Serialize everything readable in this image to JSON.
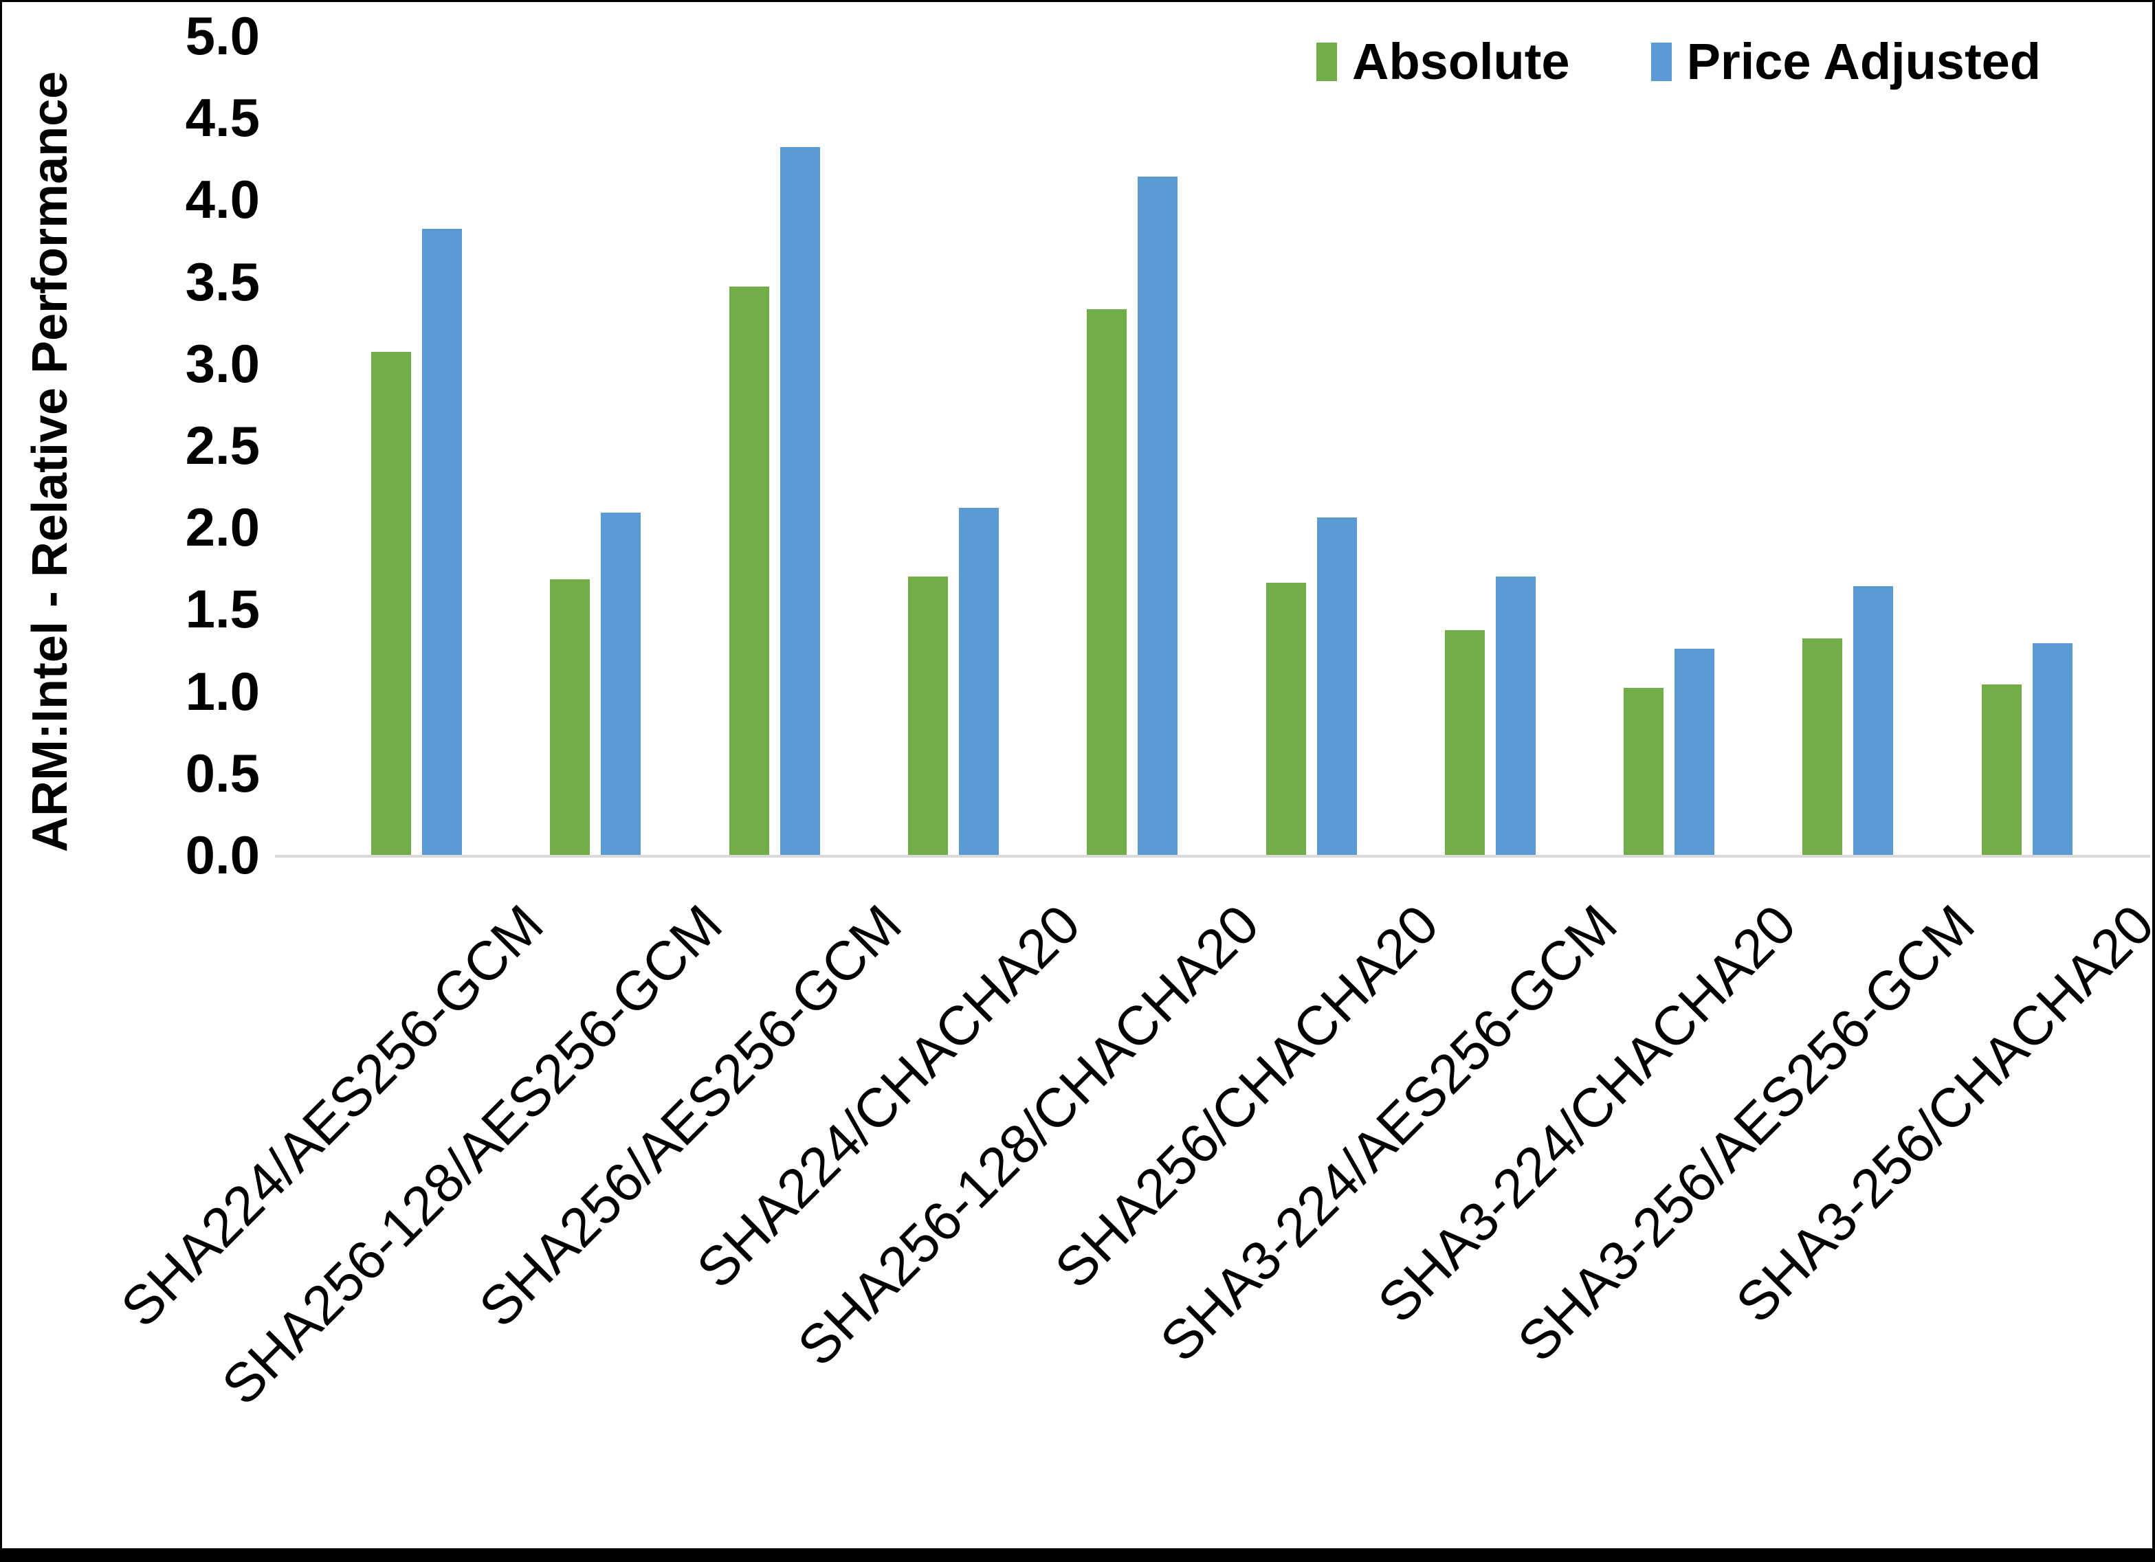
{
  "figure": {
    "background_color": "#FFFFFF",
    "frame_color": "#000000",
    "text_color": "#000000"
  },
  "chart_data": {
    "type": "bar",
    "title": "",
    "xlabel": "",
    "ylabel": "ARM:Intel - Relative Performance",
    "ylim": [
      0.0,
      5.0
    ],
    "ytick_step": 0.5,
    "yticks": [
      "0.0",
      "0.5",
      "1.0",
      "1.5",
      "2.0",
      "2.5",
      "3.0",
      "3.5",
      "4.0",
      "4.5",
      "5.0"
    ],
    "grid": false,
    "legend_position": "top-right",
    "axis_line_color": "#D9D9D9",
    "categories": [
      "SHA224/AES256-GCM",
      "SHA256-128/AES256-GCM",
      "SHA256/AES256-GCM",
      "SHA224/CHACHA20",
      "SHA256-128/CHACHA20",
      "SHA256/CHACHA20",
      "SHA3-224/AES256-GCM",
      "SHA3-224/CHACHA20",
      "SHA3-256/AES256-GCM",
      "SHA3-256/CHACHA20"
    ],
    "series": [
      {
        "name": "Absolute",
        "color": "#70AD47",
        "values": [
          3.07,
          1.68,
          3.47,
          1.7,
          3.33,
          1.66,
          1.37,
          1.02,
          1.32,
          1.04
        ]
      },
      {
        "name": "Price Adjusted",
        "color": "#5B9BD5",
        "values": [
          3.82,
          2.09,
          4.32,
          2.12,
          4.14,
          2.06,
          1.7,
          1.26,
          1.64,
          1.29
        ]
      }
    ]
  },
  "legend": {
    "items": [
      {
        "label": "Absolute",
        "color": "#70AD47"
      },
      {
        "label": "Price Adjusted",
        "color": "#5B9BD5"
      }
    ]
  }
}
